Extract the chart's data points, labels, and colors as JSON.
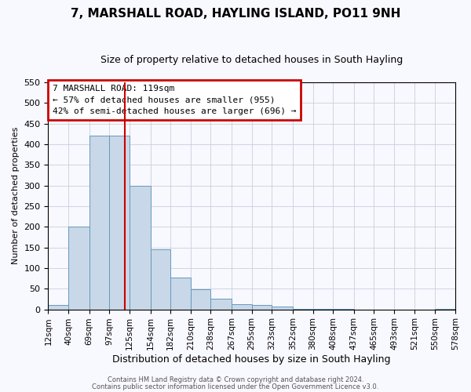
{
  "title": "7, MARSHALL ROAD, HAYLING ISLAND, PO11 9NH",
  "subtitle": "Size of property relative to detached houses in South Hayling",
  "xlabel": "Distribution of detached houses by size in South Hayling",
  "ylabel": "Number of detached properties",
  "bar_values": [
    10,
    200,
    420,
    420,
    300,
    145,
    78,
    48,
    25,
    12,
    10,
    7,
    2,
    2,
    2,
    0,
    0,
    0,
    0,
    2
  ],
  "all_bin_edges": [
    12,
    40,
    69,
    97,
    125,
    154,
    182,
    210,
    238,
    267,
    295,
    323,
    352,
    380,
    408,
    437,
    465,
    493,
    521,
    550,
    578
  ],
  "tick_labels": [
    "12sqm",
    "40sqm",
    "69sqm",
    "97sqm",
    "125sqm",
    "154sqm",
    "182sqm",
    "210sqm",
    "238sqm",
    "267sqm",
    "295sqm",
    "323sqm",
    "352sqm",
    "380sqm",
    "408sqm",
    "437sqm",
    "465sqm",
    "493sqm",
    "521sqm",
    "550sqm",
    "578sqm"
  ],
  "bar_color": "#c8d8e8",
  "bar_edgecolor": "#6699bb",
  "vline_x": 119,
  "vline_color": "#cc0000",
  "ylim": [
    0,
    550
  ],
  "yticks": [
    0,
    50,
    100,
    150,
    200,
    250,
    300,
    350,
    400,
    450,
    500,
    550
  ],
  "annotation_title": "7 MARSHALL ROAD: 119sqm",
  "annotation_line1": "← 57% of detached houses are smaller (955)",
  "annotation_line2": "42% of semi-detached houses are larger (696) →",
  "annotation_box_color": "#cc0000",
  "footer_line1": "Contains HM Land Registry data © Crown copyright and database right 2024.",
  "footer_line2": "Contains public sector information licensed under the Open Government Licence v3.0.",
  "bg_color": "#f8f8ff",
  "grid_color": "#c8d0dc",
  "title_fontsize": 11,
  "subtitle_fontsize": 9,
  "ylabel_fontsize": 8,
  "xlabel_fontsize": 9,
  "tick_fontsize": 7.5,
  "ytick_fontsize": 8,
  "footer_fontsize": 6,
  "ann_fontsize": 8
}
